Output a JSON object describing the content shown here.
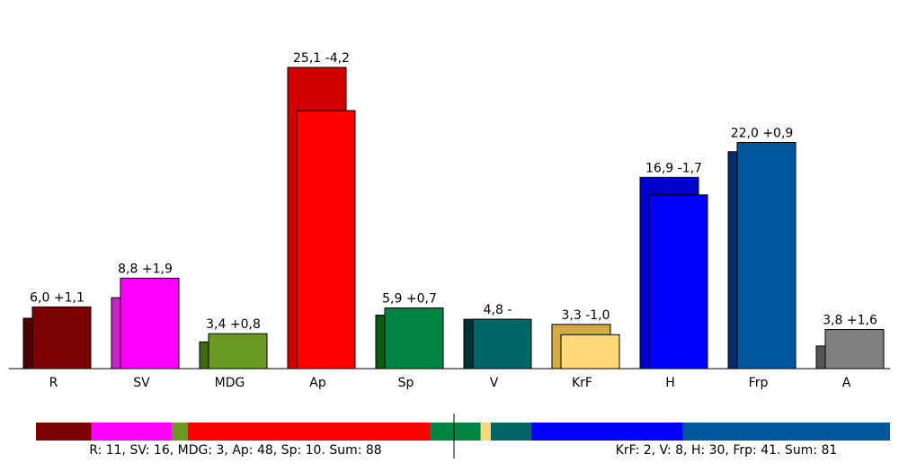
{
  "chart_data": {
    "type": "bar",
    "categories": [
      "R",
      "SV",
      "MDG",
      "Ap",
      "Sp",
      "V",
      "KrF",
      "H",
      "Frp",
      "A"
    ],
    "values": [
      6.0,
      8.8,
      3.4,
      25.1,
      5.9,
      4.8,
      3.3,
      16.9,
      22.0,
      3.8
    ],
    "value_labels": [
      "6,0",
      "8,8",
      "3,4",
      "25,1",
      "5,9",
      "4,8",
      "3,3",
      "16,9",
      "22,0",
      "3,8"
    ],
    "change_labels": [
      "+1,1",
      "+1,9",
      "+0,8",
      "-4,2",
      "+0,7",
      "-",
      "-1,0",
      "-1,7",
      "+0,9",
      "+1,6"
    ],
    "previous_values": [
      4.9,
      6.9,
      2.6,
      29.3,
      5.2,
      4.8,
      4.3,
      18.6,
      21.1,
      2.2
    ],
    "colors": [
      "#7b0000",
      "#ff00ff",
      "#6a9a22",
      "#ff0000",
      "#008542",
      "#006666",
      "#ffd877",
      "#0000ff",
      "#00579c",
      "#808080"
    ],
    "previous_colors": [
      "#4a0000",
      "#cc22cc",
      "#3f6a10",
      "#d00000",
      "#0a5a10",
      "#003333",
      "#d4aa44",
      "#0000cc",
      "#0a2a70",
      "#555555"
    ],
    "ylim": [
      0,
      30
    ],
    "seats": {
      "left": {
        "label": "R: 11, SV: 16, MDG: 3, Ap: 48, Sp: 10. Sum: 88",
        "parties": [
          0,
          1,
          2,
          3,
          4
        ],
        "seats": [
          11,
          16,
          3,
          48,
          10
        ]
      },
      "right": {
        "label": "KrF: 2, V: 8, H: 30, Frp: 41. Sum: 81",
        "parties": [
          6,
          5,
          7,
          8
        ],
        "seats": [
          2,
          8,
          30,
          41
        ]
      }
    }
  }
}
